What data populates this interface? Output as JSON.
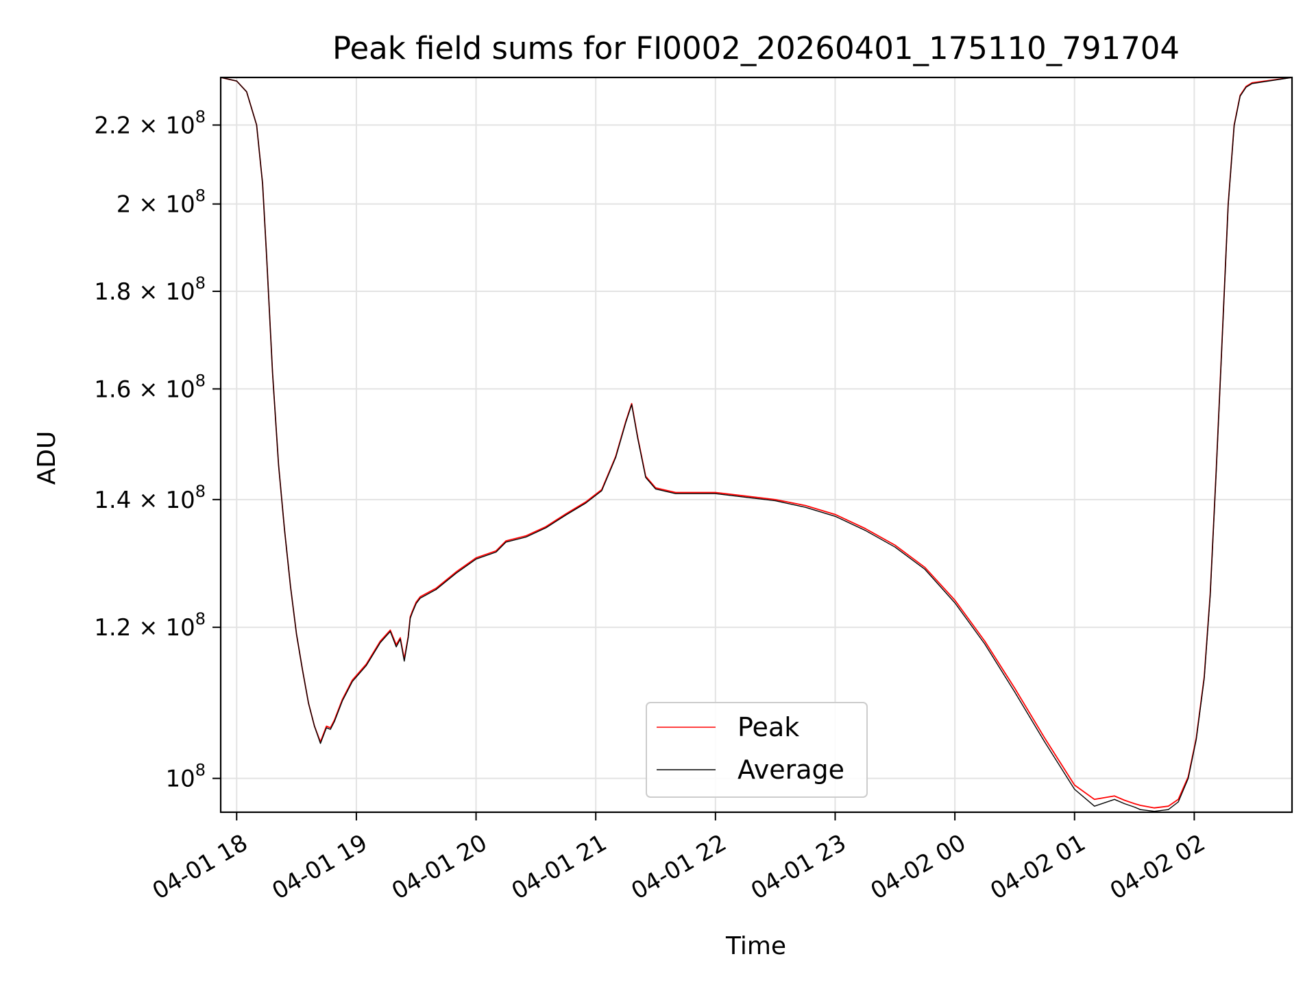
{
  "chart_data": {
    "type": "line",
    "title": "Peak field sums for FI0002_20260401_175110_791704",
    "xlabel": "Time",
    "ylabel": "ADU",
    "y_scale": "log",
    "grid": true,
    "legend_position": "lower center",
    "xlim": [
      "2026-04-01 17:52",
      "2026-04-02 02:49"
    ],
    "ylim": [
      96000000,
      233000000
    ],
    "x_ticks": [
      {
        "t": "2026-04-01 18:00",
        "label": "04-01 18"
      },
      {
        "t": "2026-04-01 19:00",
        "label": "04-01 19"
      },
      {
        "t": "2026-04-01 20:00",
        "label": "04-01 20"
      },
      {
        "t": "2026-04-01 21:00",
        "label": "04-01 21"
      },
      {
        "t": "2026-04-01 22:00",
        "label": "04-01 22"
      },
      {
        "t": "2026-04-01 23:00",
        "label": "04-01 23"
      },
      {
        "t": "2026-04-02 00:00",
        "label": "04-02 00"
      },
      {
        "t": "2026-04-02 01:00",
        "label": "04-02 01"
      },
      {
        "t": "2026-04-02 02:00",
        "label": "04-02 02"
      }
    ],
    "y_ticks": [
      {
        "value": 100000000,
        "mantissa": "",
        "exponent": "8"
      },
      {
        "value": 120000000,
        "mantissa": "1.2",
        "exponent": "8"
      },
      {
        "value": 140000000,
        "mantissa": "1.4",
        "exponent": "8"
      },
      {
        "value": 160000000,
        "mantissa": "1.6",
        "exponent": "8"
      },
      {
        "value": 180000000,
        "mantissa": "1.8",
        "exponent": "8"
      },
      {
        "value": 200000000,
        "mantissa": "2",
        "exponent": "8"
      },
      {
        "value": 220000000,
        "mantissa": "2.2",
        "exponent": "8"
      }
    ],
    "series": [
      {
        "name": "Peak",
        "color": "#ff0000",
        "x": [
          "2026-04-01 17:52",
          "2026-04-01 18:00",
          "2026-04-01 18:05",
          "2026-04-01 18:10",
          "2026-04-01 18:13",
          "2026-04-01 18:15",
          "2026-04-01 18:18",
          "2026-04-01 18:21",
          "2026-04-01 18:24",
          "2026-04-01 18:27",
          "2026-04-01 18:30",
          "2026-04-01 18:33",
          "2026-04-01 18:36",
          "2026-04-01 18:39",
          "2026-04-01 18:42",
          "2026-04-01 18:45",
          "2026-04-01 18:47",
          "2026-04-01 18:49",
          "2026-04-01 18:53",
          "2026-04-01 18:58",
          "2026-04-01 19:05",
          "2026-04-01 19:12",
          "2026-04-01 19:17",
          "2026-04-01 19:20",
          "2026-04-01 19:22",
          "2026-04-01 19:24",
          "2026-04-01 19:26",
          "2026-04-01 19:27",
          "2026-04-01 19:28",
          "2026-04-01 19:29",
          "2026-04-01 19:30",
          "2026-04-01 19:32",
          "2026-04-01 19:40",
          "2026-04-01 19:50",
          "2026-04-01 20:00",
          "2026-04-01 20:10",
          "2026-04-01 20:15",
          "2026-04-01 20:25",
          "2026-04-01 20:35",
          "2026-04-01 20:45",
          "2026-04-01 20:55",
          "2026-04-01 21:03",
          "2026-04-01 21:10",
          "2026-04-01 21:15",
          "2026-04-01 21:18",
          "2026-04-01 21:21",
          "2026-04-01 21:25",
          "2026-04-01 21:30",
          "2026-04-01 21:40",
          "2026-04-01 22:00",
          "2026-04-01 22:15",
          "2026-04-01 22:30",
          "2026-04-01 22:45",
          "2026-04-01 23:00",
          "2026-04-01 23:15",
          "2026-04-01 23:30",
          "2026-04-01 23:45",
          "2026-04-02 00:00",
          "2026-04-02 00:15",
          "2026-04-02 00:30",
          "2026-04-02 00:45",
          "2026-04-02 01:00",
          "2026-04-02 01:10",
          "2026-04-02 01:20",
          "2026-04-02 01:25",
          "2026-04-02 01:30",
          "2026-04-02 01:33",
          "2026-04-02 01:40",
          "2026-04-02 01:47",
          "2026-04-02 01:52",
          "2026-04-02 01:57",
          "2026-04-02 02:01",
          "2026-04-02 02:05",
          "2026-04-02 02:08",
          "2026-04-02 02:11",
          "2026-04-02 02:14",
          "2026-04-02 02:17",
          "2026-04-02 02:20",
          "2026-04-02 02:23",
          "2026-04-02 02:26",
          "2026-04-02 02:29",
          "2026-04-02 02:49"
        ],
        "values": [
          233000000,
          232000000,
          229000000,
          220000000,
          205000000,
          188000000,
          163000000,
          146000000,
          135000000,
          126000000,
          119000000,
          114000000,
          109500000,
          106500000,
          104500000,
          106500000,
          106300000,
          107300000,
          110000000,
          112600000,
          114800000,
          118000000,
          119600000,
          117500000,
          118500000,
          115500000,
          118700000,
          121500000,
          122300000,
          123000000,
          123700000,
          124500000,
          125800000,
          128300000,
          130500000,
          131600000,
          133200000,
          134000000,
          135500000,
          137600000,
          139600000,
          141700000,
          147500000,
          153800000,
          157200000,
          151000000,
          144000000,
          142000000,
          141200000,
          141200000,
          140600000,
          140000000,
          139000000,
          137500000,
          135200000,
          132500000,
          129000000,
          124000000,
          118000000,
          111500000,
          105000000,
          99200000,
          97500000,
          97900000,
          97400000,
          97000000,
          96800000,
          96500000,
          96700000,
          97500000,
          100200000,
          105000000,
          113000000,
          125000000,
          145000000,
          170000000,
          200000000,
          220000000,
          228000000,
          230500000,
          231500000,
          233000000
        ]
      },
      {
        "name": "Average",
        "color": "#000000",
        "x": [
          "2026-04-01 17:52",
          "2026-04-01 18:00",
          "2026-04-01 18:05",
          "2026-04-01 18:10",
          "2026-04-01 18:13",
          "2026-04-01 18:15",
          "2026-04-01 18:18",
          "2026-04-01 18:21",
          "2026-04-01 18:24",
          "2026-04-01 18:27",
          "2026-04-01 18:30",
          "2026-04-01 18:33",
          "2026-04-01 18:36",
          "2026-04-01 18:39",
          "2026-04-01 18:42",
          "2026-04-01 18:45",
          "2026-04-01 18:47",
          "2026-04-01 18:49",
          "2026-04-01 18:53",
          "2026-04-01 18:58",
          "2026-04-01 19:05",
          "2026-04-01 19:12",
          "2026-04-01 19:17",
          "2026-04-01 19:20",
          "2026-04-01 19:22",
          "2026-04-01 19:24",
          "2026-04-01 19:26",
          "2026-04-01 19:27",
          "2026-04-01 19:28",
          "2026-04-01 19:29",
          "2026-04-01 19:30",
          "2026-04-01 19:32",
          "2026-04-01 19:40",
          "2026-04-01 19:50",
          "2026-04-01 20:00",
          "2026-04-01 20:10",
          "2026-04-01 20:15",
          "2026-04-01 20:25",
          "2026-04-01 20:35",
          "2026-04-01 20:45",
          "2026-04-01 20:55",
          "2026-04-01 21:03",
          "2026-04-01 21:10",
          "2026-04-01 21:15",
          "2026-04-01 21:18",
          "2026-04-01 21:21",
          "2026-04-01 21:25",
          "2026-04-01 21:30",
          "2026-04-01 21:40",
          "2026-04-01 22:00",
          "2026-04-01 22:15",
          "2026-04-01 22:30",
          "2026-04-01 22:45",
          "2026-04-01 23:00",
          "2026-04-01 23:15",
          "2026-04-01 23:30",
          "2026-04-01 23:45",
          "2026-04-02 00:00",
          "2026-04-02 00:15",
          "2026-04-02 00:30",
          "2026-04-02 00:45",
          "2026-04-02 01:00",
          "2026-04-02 01:10",
          "2026-04-02 01:20",
          "2026-04-02 01:25",
          "2026-04-02 01:30",
          "2026-04-02 01:33",
          "2026-04-02 01:40",
          "2026-04-02 01:47",
          "2026-04-02 01:52",
          "2026-04-02 01:57",
          "2026-04-02 02:01",
          "2026-04-02 02:05",
          "2026-04-02 02:08",
          "2026-04-02 02:11",
          "2026-04-02 02:14",
          "2026-04-02 02:17",
          "2026-04-02 02:20",
          "2026-04-02 02:23",
          "2026-04-02 02:26",
          "2026-04-02 02:29",
          "2026-04-02 02:49"
        ],
        "values": [
          233000000,
          232000000,
          229000000,
          220000000,
          205000000,
          188000000,
          163000000,
          146000000,
          135000000,
          126000000,
          119000000,
          114000000,
          109500000,
          106500000,
          104300000,
          106300000,
          106100000,
          107100000,
          109800000,
          112400000,
          114600000,
          117800000,
          119400000,
          117200000,
          118300000,
          115200000,
          118500000,
          121300000,
          122100000,
          122800000,
          123500000,
          124300000,
          125600000,
          128100000,
          130300000,
          131400000,
          133000000,
          133800000,
          135300000,
          137400000,
          139400000,
          141500000,
          147300000,
          153600000,
          157000000,
          150800000,
          143800000,
          141800000,
          141000000,
          141000000,
          140400000,
          139800000,
          138700000,
          137200000,
          134900000,
          132200000,
          128700000,
          123600000,
          117600000,
          111000000,
          104500000,
          98700000,
          96700000,
          97500000,
          97000000,
          96600000,
          96300000,
          96100000,
          96300000,
          97200000,
          100000000,
          104800000,
          112800000,
          124800000,
          144800000,
          169800000,
          199800000,
          219800000,
          227800000,
          230300000,
          231300000,
          233000000
        ]
      }
    ]
  }
}
